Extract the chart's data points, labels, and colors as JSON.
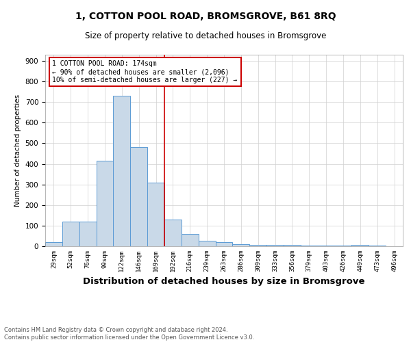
{
  "title1": "1, COTTON POOL ROAD, BROMSGROVE, B61 8RQ",
  "title2": "Size of property relative to detached houses in Bromsgrove",
  "xlabel": "Distribution of detached houses by size in Bromsgrove",
  "ylabel": "Number of detached properties",
  "categories": [
    "29sqm",
    "52sqm",
    "76sqm",
    "99sqm",
    "122sqm",
    "146sqm",
    "169sqm",
    "192sqm",
    "216sqm",
    "239sqm",
    "263sqm",
    "286sqm",
    "309sqm",
    "333sqm",
    "356sqm",
    "379sqm",
    "403sqm",
    "426sqm",
    "449sqm",
    "473sqm",
    "496sqm"
  ],
  "values": [
    20,
    120,
    120,
    415,
    730,
    480,
    310,
    130,
    60,
    25,
    20,
    10,
    8,
    5,
    5,
    3,
    2,
    2,
    8,
    2,
    1
  ],
  "bar_color": "#c9d9e8",
  "bar_edge_color": "#5b9bd5",
  "vline_color": "#cc0000",
  "annotation_text": "1 COTTON POOL ROAD: 174sqm\n← 90% of detached houses are smaller (2,096)\n10% of semi-detached houses are larger (227) →",
  "annotation_box_color": "#ffffff",
  "annotation_box_edge": "#cc0000",
  "ylim": [
    0,
    930
  ],
  "yticks": [
    0,
    100,
    200,
    300,
    400,
    500,
    600,
    700,
    800,
    900
  ],
  "footer": "Contains HM Land Registry data © Crown copyright and database right 2024.\nContains public sector information licensed under the Open Government Licence v3.0.",
  "title1_fontsize": 10,
  "title2_fontsize": 8.5,
  "xlabel_fontsize": 9.5,
  "ylabel_fontsize": 7.5,
  "tick_fontsize": 6.5,
  "footer_fontsize": 6,
  "annotation_fontsize": 7
}
